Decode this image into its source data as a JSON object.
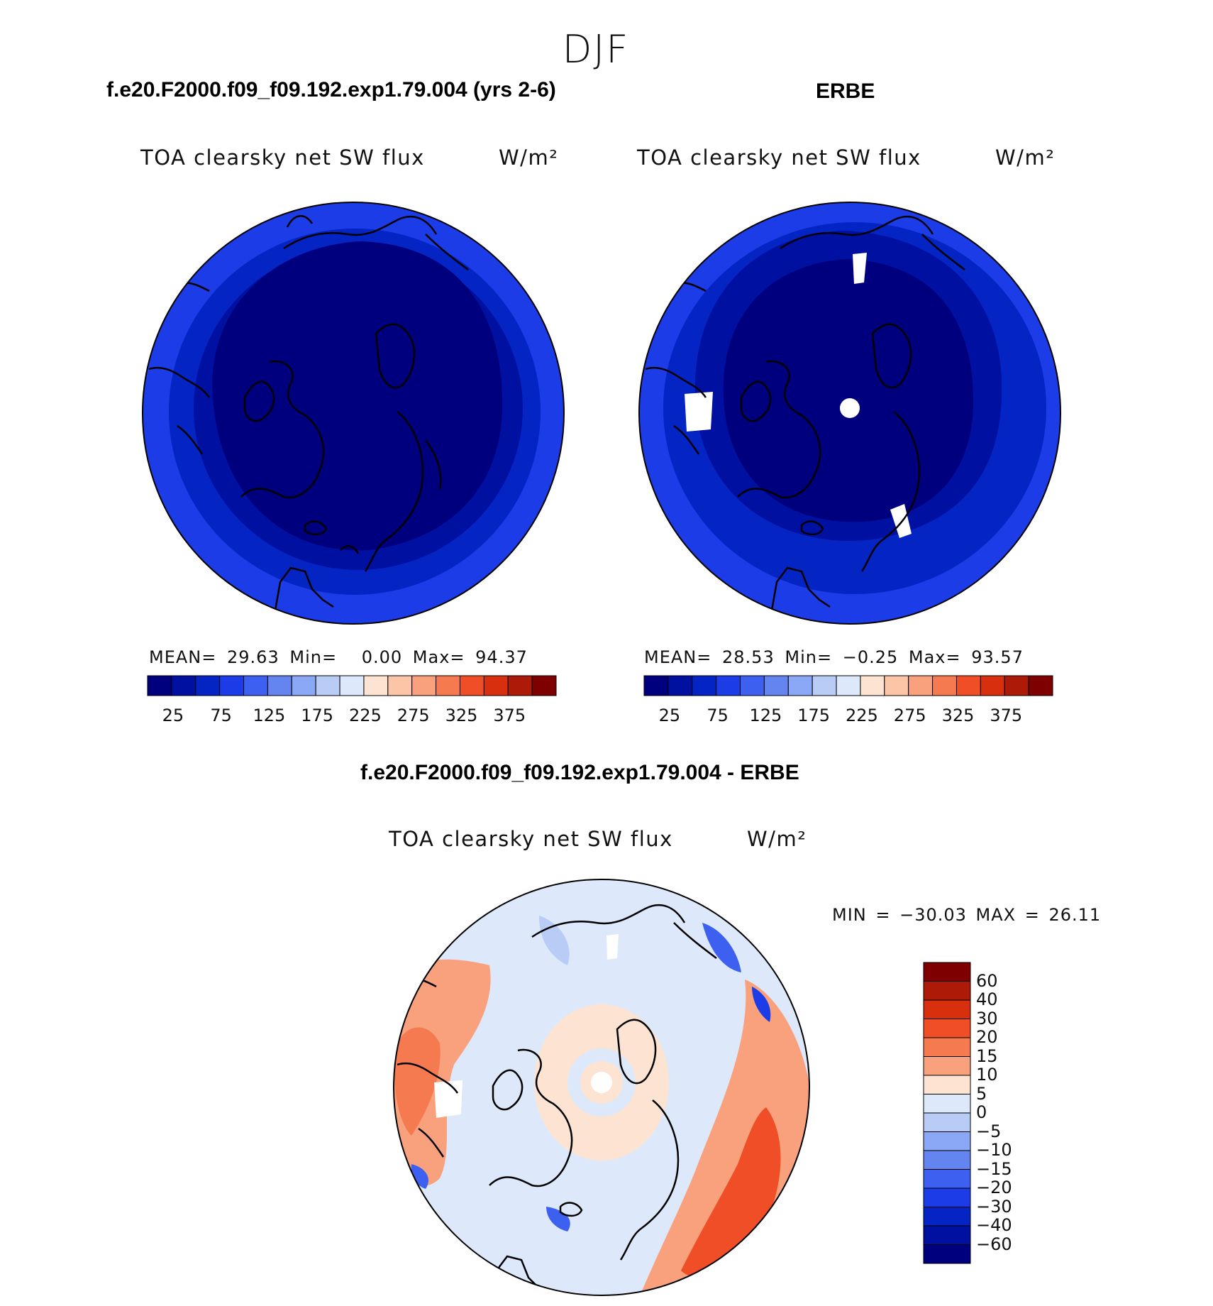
{
  "page_title": "DJF",
  "panels": [
    {
      "case_title": "f.e20.F2000.f09_f09.192.exp1.79.004 (yrs 2-6)",
      "variable": "TOA clearsky net SW flux",
      "units": "W/m²",
      "mean_label": "MEAN=",
      "mean": "29.63",
      "min_label": "Min=",
      "min": "0.00",
      "max_label": "Max=",
      "max": "94.37"
    },
    {
      "case_title": "ERBE",
      "variable": "TOA clearsky net SW flux",
      "units": "W/m²",
      "mean_label": "MEAN=",
      "mean": "28.53",
      "min_label": "Min=",
      "min": "−0.25",
      "max_label": "Max=",
      "max": "93.57"
    },
    {
      "case_title": "f.e20.F2000.f09_f09.192.exp1.79.004 - ERBE",
      "variable": "TOA clearsky net SW flux",
      "units": "W/m²",
      "minmax_label": "MIN = −30.03 MAX =  26.11"
    }
  ],
  "colors": {
    "abs_scale": [
      "#00007f",
      "#0010a0",
      "#0524c4",
      "#1c3ce8",
      "#3d60f0",
      "#6484f0",
      "#8aa8f5",
      "#b8ccf5",
      "#dde8fa",
      "#fde4d2",
      "#fcc5a8",
      "#f9a07c",
      "#f57a50",
      "#f04e26",
      "#d8300e",
      "#ae1a08",
      "#7e0000"
    ],
    "diff_scale": [
      "#7e0000",
      "#ae1a08",
      "#d8300e",
      "#f04e26",
      "#f57a50",
      "#f9a07c",
      "#fde4d2",
      "#dde8fa",
      "#b8ccf5",
      "#8aa8f5",
      "#6484f0",
      "#3d60f0",
      "#1c3ce8",
      "#0524c4",
      "#0010a0",
      "#00007f"
    ],
    "missing": "#ffffff"
  },
  "chart_data": [
    {
      "type": "heatmap",
      "title": "f.e20.F2000.f09_f09.192.exp1.79.004 (yrs 2-6)",
      "subtitle": "TOA clearsky net SW flux",
      "units": "W/m²",
      "projection": "north polar stereographic",
      "season": "DJF",
      "mean": 29.63,
      "min": 0.0,
      "max": 94.37,
      "colorbar_levels": [
        25,
        50,
        75,
        100,
        125,
        150,
        175,
        200,
        225,
        250,
        275,
        300,
        325,
        350,
        375,
        400
      ],
      "colorbar_tick_labels": [
        "25",
        "75",
        "125",
        "175",
        "225",
        "275",
        "325",
        "375"
      ]
    },
    {
      "type": "heatmap",
      "title": "ERBE",
      "subtitle": "TOA clearsky net SW flux",
      "units": "W/m²",
      "projection": "north polar stereographic",
      "season": "DJF",
      "mean": 28.53,
      "min": -0.25,
      "max": 93.57,
      "colorbar_levels": [
        25,
        50,
        75,
        100,
        125,
        150,
        175,
        200,
        225,
        250,
        275,
        300,
        325,
        350,
        375,
        400
      ],
      "colorbar_tick_labels": [
        "25",
        "75",
        "125",
        "175",
        "225",
        "275",
        "325",
        "375"
      ]
    },
    {
      "type": "heatmap",
      "title": "f.e20.F2000.f09_f09.192.exp1.79.004 - ERBE",
      "subtitle": "TOA clearsky net SW flux",
      "units": "W/m²",
      "projection": "north polar stereographic",
      "season": "DJF",
      "min": -30.03,
      "max": 26.11,
      "colorbar_tick_labels": [
        "60",
        "40",
        "30",
        "20",
        "15",
        "10",
        "5",
        "0",
        "−5",
        "−10",
        "−15",
        "−20",
        "−30",
        "−40",
        "−60"
      ]
    }
  ]
}
